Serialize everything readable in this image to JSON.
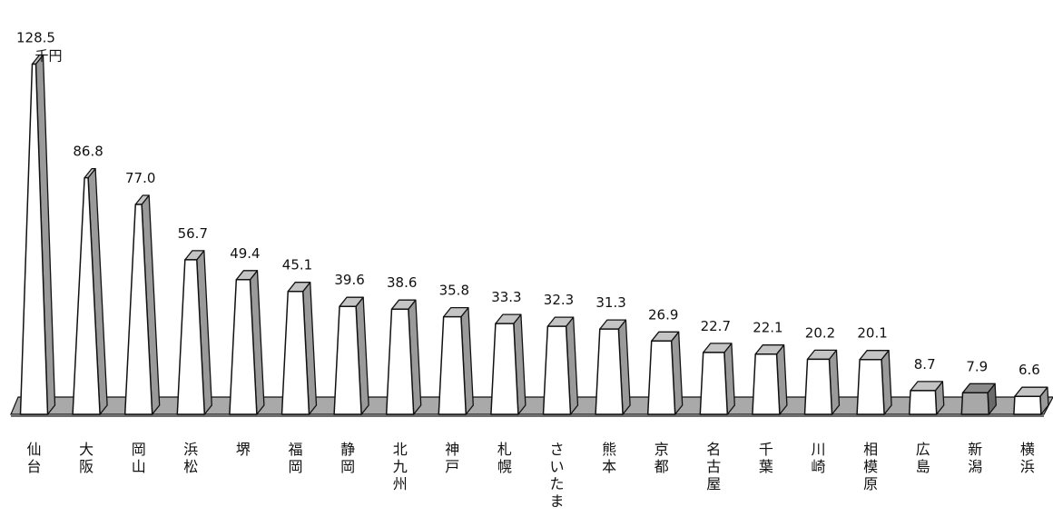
{
  "chart_data": {
    "type": "bar",
    "unit": "千円",
    "categories": [
      "仙台",
      "大阪",
      "岡山",
      "浜松",
      "堺",
      "福岡",
      "静岡",
      "北九州",
      "神戸",
      "札幌",
      "さいたま",
      "熊本",
      "京都",
      "名古屋",
      "千葉",
      "川崎",
      "相模原",
      "広島",
      "新潟",
      "横浜"
    ],
    "values": [
      128.5,
      86.8,
      77.0,
      56.7,
      49.4,
      45.1,
      39.6,
      38.6,
      35.8,
      33.3,
      32.3,
      31.3,
      26.9,
      22.7,
      22.1,
      20.2,
      20.1,
      8.7,
      7.9,
      6.6
    ],
    "value_labels": [
      "128.5",
      "86.8",
      "77.0",
      "56.7",
      "49.4",
      "45.1",
      "39.6",
      "38.6",
      "35.8",
      "33.3",
      "32.3",
      "31.3",
      "26.9",
      "22.7",
      "22.1",
      "20.2",
      "20.1",
      "8.7",
      "7.9",
      "6.6"
    ],
    "highlight_index": 18,
    "colors": {
      "bar_front": "#ffffff",
      "bar_side": "#9a9a9a",
      "bar_top": "#c4c4c4",
      "highlight_front": "#a8a8a8",
      "highlight_side": "#6a6a6a",
      "highlight_top": "#8a8a8a",
      "floor": "#a9a9a9",
      "floor_edge": "#6e6e6e",
      "outline": "#111111"
    }
  }
}
